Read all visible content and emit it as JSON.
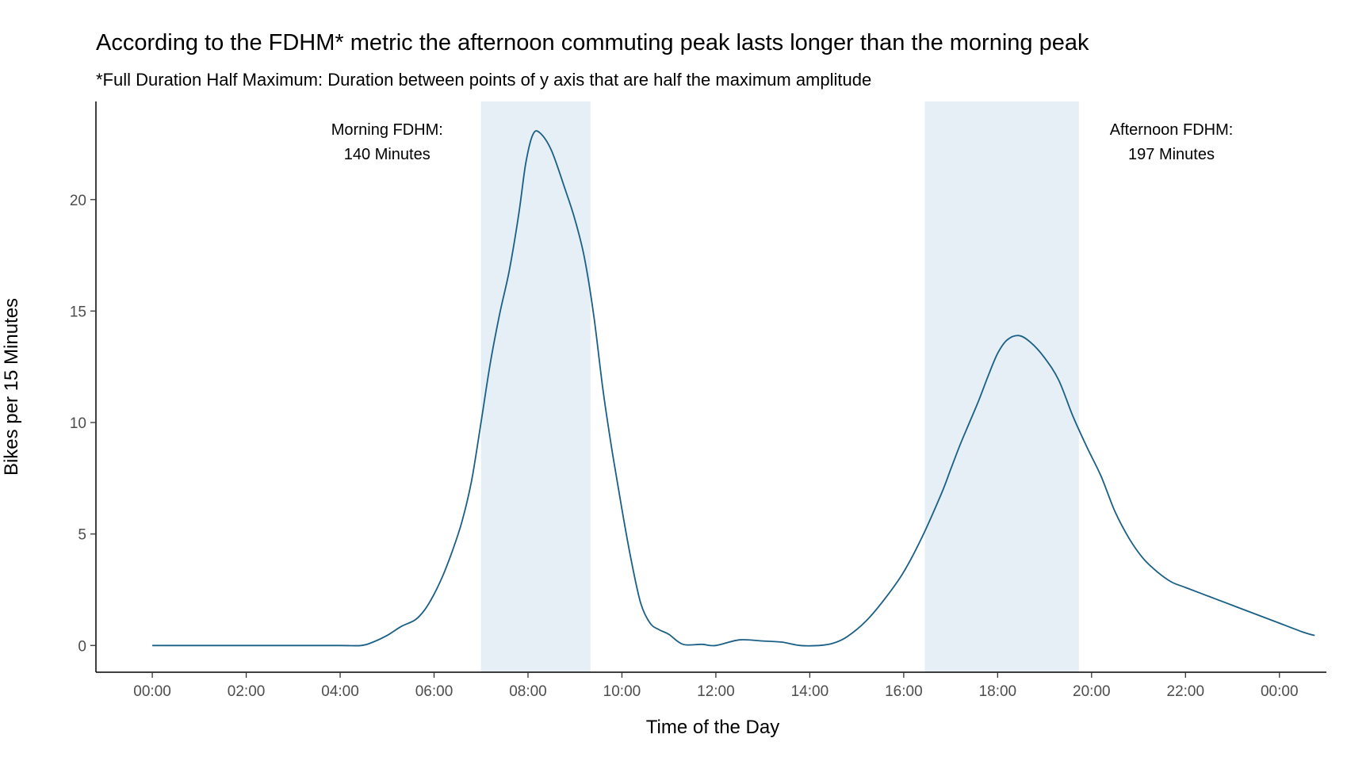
{
  "chart_data": {
    "type": "line",
    "title": "According to the FDHM* metric the afternoon commuting peak lasts longer than the morning peak",
    "subtitle": "*Full Duration Half Maximum: Duration between points of y axis that are half the maximum amplitude",
    "xlabel": "Time of the Day",
    "ylabel": "Bikes per 15 Minutes",
    "x_unit": "hours since 00:00",
    "xlim": [
      -1.2,
      25.0
    ],
    "ylim": [
      -1.2,
      24.4
    ],
    "x_ticks": [
      {
        "value": 0,
        "label": "00:00"
      },
      {
        "value": 2,
        "label": "02:00"
      },
      {
        "value": 4,
        "label": "04:00"
      },
      {
        "value": 6,
        "label": "06:00"
      },
      {
        "value": 8,
        "label": "08:00"
      },
      {
        "value": 10,
        "label": "10:00"
      },
      {
        "value": 12,
        "label": "12:00"
      },
      {
        "value": 14,
        "label": "14:00"
      },
      {
        "value": 16,
        "label": "16:00"
      },
      {
        "value": 18,
        "label": "18:00"
      },
      {
        "value": 20,
        "label": "20:00"
      },
      {
        "value": 22,
        "label": "22:00"
      },
      {
        "value": 24,
        "label": "00:00"
      }
    ],
    "y_ticks": [
      {
        "value": 0,
        "label": "0"
      },
      {
        "value": 5,
        "label": "5"
      },
      {
        "value": 10,
        "label": "10"
      },
      {
        "value": 15,
        "label": "15"
      },
      {
        "value": 20,
        "label": "20"
      }
    ],
    "grid": false,
    "line_color": "#1a5f85",
    "band_color": "#e5eff5",
    "series": [
      {
        "points": [
          [
            0,
            0
          ],
          [
            1,
            0
          ],
          [
            2,
            0
          ],
          [
            3,
            0
          ],
          [
            4,
            0
          ],
          [
            4.45,
            0
          ],
          [
            4.7,
            0.15
          ],
          [
            5.0,
            0.45
          ],
          [
            5.3,
            0.85
          ],
          [
            5.6,
            1.15
          ],
          [
            5.8,
            1.6
          ],
          [
            6.0,
            2.3
          ],
          [
            6.2,
            3.2
          ],
          [
            6.4,
            4.3
          ],
          [
            6.6,
            5.6
          ],
          [
            6.8,
            7.4
          ],
          [
            7.0,
            10.0
          ],
          [
            7.2,
            12.7
          ],
          [
            7.4,
            14.9
          ],
          [
            7.6,
            16.8
          ],
          [
            7.8,
            19.3
          ],
          [
            7.95,
            21.6
          ],
          [
            8.1,
            22.9
          ],
          [
            8.25,
            23.0
          ],
          [
            8.5,
            22.2
          ],
          [
            8.8,
            20.4
          ],
          [
            9.0,
            19.1
          ],
          [
            9.2,
            17.4
          ],
          [
            9.4,
            14.8
          ],
          [
            9.6,
            11.4
          ],
          [
            9.8,
            8.6
          ],
          [
            10.0,
            6.1
          ],
          [
            10.2,
            3.8
          ],
          [
            10.4,
            1.9
          ],
          [
            10.6,
            1.0
          ],
          [
            10.8,
            0.7
          ],
          [
            11.0,
            0.5
          ],
          [
            11.3,
            0.05
          ],
          [
            11.7,
            0.05
          ],
          [
            12.0,
            0.0
          ],
          [
            12.5,
            0.25
          ],
          [
            13.0,
            0.2
          ],
          [
            13.4,
            0.15
          ],
          [
            13.8,
            0.0
          ],
          [
            14.2,
            0.0
          ],
          [
            14.5,
            0.1
          ],
          [
            14.8,
            0.4
          ],
          [
            15.2,
            1.1
          ],
          [
            15.6,
            2.1
          ],
          [
            16.0,
            3.3
          ],
          [
            16.4,
            4.9
          ],
          [
            16.8,
            6.8
          ],
          [
            17.0,
            7.9
          ],
          [
            17.2,
            9.0
          ],
          [
            17.4,
            10.0
          ],
          [
            17.6,
            11.0
          ],
          [
            17.8,
            12.1
          ],
          [
            18.0,
            13.1
          ],
          [
            18.2,
            13.7
          ],
          [
            18.45,
            13.9
          ],
          [
            18.7,
            13.6
          ],
          [
            19.0,
            12.9
          ],
          [
            19.3,
            11.9
          ],
          [
            19.6,
            10.3
          ],
          [
            19.9,
            8.9
          ],
          [
            20.2,
            7.6
          ],
          [
            20.5,
            6.0
          ],
          [
            20.8,
            4.8
          ],
          [
            21.1,
            3.9
          ],
          [
            21.4,
            3.3
          ],
          [
            21.7,
            2.85
          ],
          [
            22.0,
            2.6
          ],
          [
            22.5,
            2.2
          ],
          [
            23.0,
            1.8
          ],
          [
            23.5,
            1.4
          ],
          [
            24.0,
            1.0
          ],
          [
            24.5,
            0.6
          ],
          [
            24.75,
            0.45
          ]
        ]
      }
    ],
    "bands": [
      {
        "x_start": 7.0,
        "x_end": 9.33,
        "annotation_line1": "Morning FDHM:",
        "annotation_line2": "140 Minutes",
        "annotation_x": 5.0,
        "annotation_y_line1": 22.9,
        "annotation_y_line2": 21.8
      },
      {
        "x_start": 16.45,
        "x_end": 19.73,
        "annotation_line1": "Afternoon FDHM:",
        "annotation_line2": "197 Minutes",
        "annotation_x": 21.7,
        "annotation_y_line1": 22.9,
        "annotation_y_line2": 21.8
      }
    ]
  }
}
